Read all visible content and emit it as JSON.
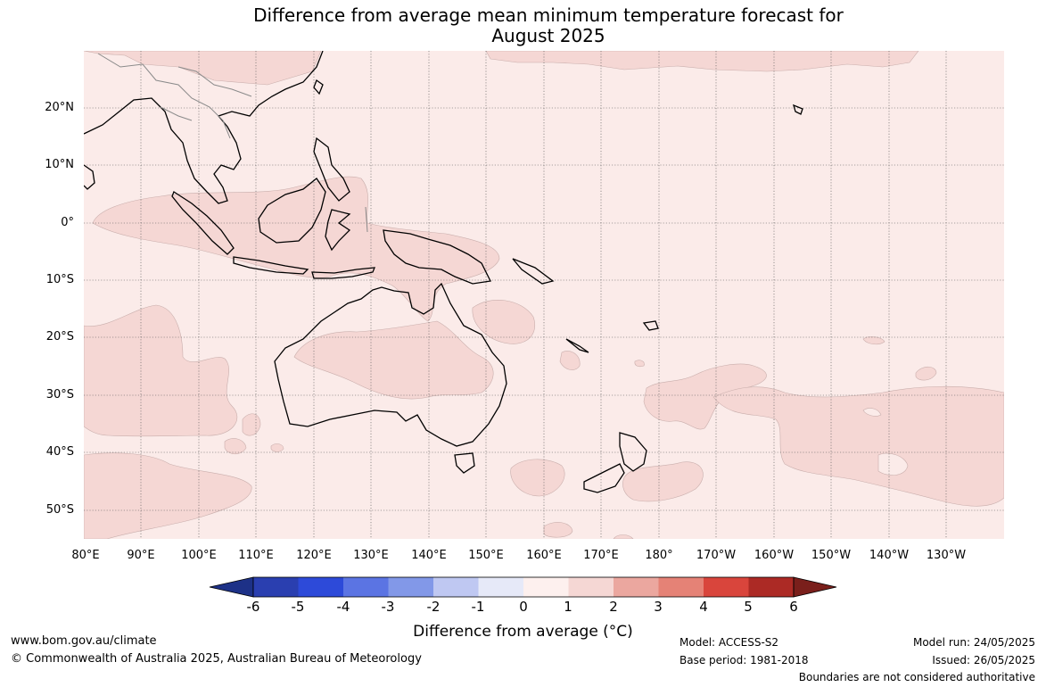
{
  "title_line1": "Difference from average mean minimum temperature forecast for",
  "title_line2": "August 2025",
  "map": {
    "lat_labels": [
      "20°N",
      "10°N",
      "0°",
      "10°S",
      "20°S",
      "30°S",
      "40°S",
      "50°S"
    ],
    "lon_labels": [
      "80°E",
      "90°E",
      "100°E",
      "110°E",
      "120°E",
      "130°E",
      "140°E",
      "150°E",
      "160°E",
      "170°E",
      "180°",
      "170°W",
      "160°W",
      "150°W",
      "140°W",
      "130°W"
    ],
    "anomaly_colors": {
      "0_to_1": "#fbebe9",
      "1_to_2": "#f5d7d4"
    }
  },
  "colorbar": {
    "title": "Difference from average (°C)",
    "tick_labels": [
      "-6",
      "-5",
      "-4",
      "-3",
      "-2",
      "-1",
      "0",
      "1",
      "2",
      "3",
      "4",
      "5",
      "6"
    ],
    "colors": [
      "#1d3187",
      "#2a3fb0",
      "#2d4ad9",
      "#5b74e3",
      "#8298e8",
      "#bfc8f2",
      "#e6e9f8",
      "#fdf0ee",
      "#f5d7d4",
      "#eba79f",
      "#e58276",
      "#d9453c",
      "#ac2a25",
      "#7a1f1b"
    ]
  },
  "footer": {
    "website": "www.bom.gov.au/climate",
    "copyright": "© Commonwealth of Australia 2025, Australian Bureau of Meteorology",
    "model": "Model: ACCESS-S2",
    "base_period": "Base period: 1981-2018",
    "model_run": "Model run: 24/05/2025",
    "issued": "Issued: 26/05/2025",
    "disclaimer": "Boundaries are not considered authoritative"
  }
}
